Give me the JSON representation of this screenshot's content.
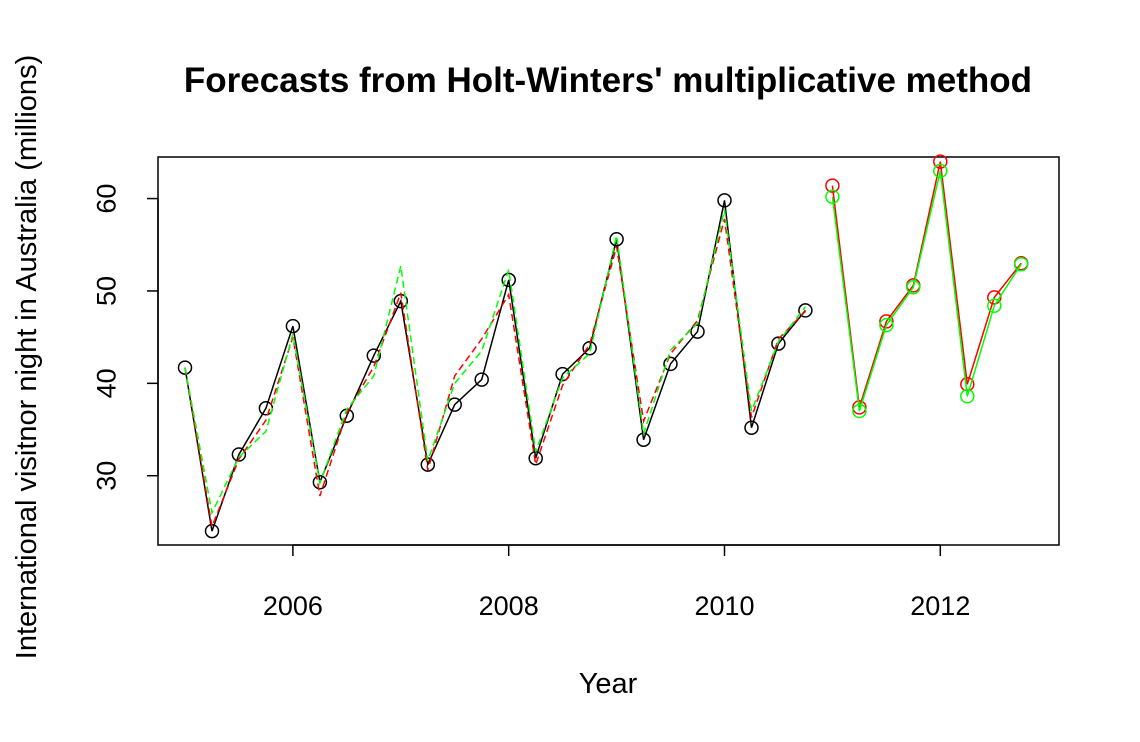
{
  "chart_data": {
    "type": "line",
    "title": "Forecasts from Holt-Winters' multiplicative method",
    "xlabel": "Year",
    "ylabel": "International visitnor night in Australia (millions)",
    "xlim": [
      2004.75,
      2013.1
    ],
    "ylim": [
      22.5,
      64.5
    ],
    "x_ticks": [
      2006,
      2008,
      2010,
      2012
    ],
    "y_ticks": [
      30,
      40,
      50,
      60
    ],
    "grid": false,
    "legend": "none",
    "series": [
      {
        "color": "#000000",
        "line": "solid",
        "markers": "circle",
        "x": [
          2005.0,
          2005.25,
          2005.5,
          2005.75,
          2006.0,
          2006.25,
          2006.5,
          2006.75,
          2007.0,
          2007.25,
          2007.5,
          2007.75,
          2008.0,
          2008.25,
          2008.5,
          2008.75,
          2009.0,
          2009.25,
          2009.5,
          2009.75,
          2010.0,
          2010.25,
          2010.5,
          2010.75
        ],
        "y": [
          41.7,
          24.0,
          32.3,
          37.3,
          46.2,
          29.3,
          36.5,
          43.0,
          48.9,
          31.2,
          37.7,
          40.4,
          51.2,
          31.9,
          41.0,
          43.8,
          55.6,
          33.9,
          42.1,
          45.6,
          59.8,
          35.2,
          44.3,
          47.9
        ]
      },
      {
        "color": "#ff0000",
        "line": "dashed",
        "markers": "none",
        "x": [
          2005.0,
          2005.25,
          2005.5,
          2005.75,
          2006.0,
          2006.25,
          2006.5,
          2006.75,
          2007.0,
          2007.25,
          2007.5,
          2007.75,
          2008.0,
          2008.25,
          2008.5,
          2008.75,
          2009.0,
          2009.25,
          2009.5,
          2009.75,
          2010.0,
          2010.25,
          2010.5,
          2010.75
        ],
        "y": [
          41.7,
          24.5,
          31.8,
          36.0,
          45.0,
          27.8,
          36.8,
          41.8,
          49.8,
          30.6,
          40.8,
          44.8,
          49.6,
          31.2,
          39.8,
          44.2,
          54.8,
          35.9,
          43.2,
          46.8,
          57.8,
          36.3,
          44.8,
          47.8
        ]
      },
      {
        "color": "#00ff00",
        "line": "dashed",
        "markers": "none",
        "x": [
          2005.0,
          2005.25,
          2005.5,
          2005.75,
          2006.0,
          2006.25,
          2006.5,
          2006.75,
          2007.0,
          2007.25,
          2007.5,
          2007.75,
          2008.0,
          2008.25,
          2008.5,
          2008.75,
          2009.0,
          2009.25,
          2009.5,
          2009.75,
          2010.0,
          2010.25,
          2010.5,
          2010.75
        ],
        "y": [
          41.7,
          26.0,
          32.0,
          34.8,
          45.3,
          29.2,
          37.2,
          40.8,
          52.7,
          31.6,
          40.0,
          43.5,
          52.3,
          32.6,
          40.6,
          43.2,
          56.0,
          34.5,
          43.6,
          46.5,
          58.8,
          37.0,
          44.5,
          48.3
        ]
      },
      {
        "color": "#ff0000",
        "line": "solid",
        "markers": "circle",
        "x": [
          2011.0,
          2011.25,
          2011.5,
          2011.75,
          2012.0,
          2012.25,
          2012.5,
          2012.75
        ],
        "y": [
          61.4,
          37.4,
          46.7,
          50.6,
          64.0,
          39.9,
          49.3,
          53.0
        ]
      },
      {
        "color": "#00ff00",
        "line": "solid",
        "markers": "circle",
        "x": [
          2011.0,
          2011.25,
          2011.5,
          2011.75,
          2012.0,
          2012.25,
          2012.5,
          2012.75
        ],
        "y": [
          60.2,
          37.0,
          46.3,
          50.4,
          63.0,
          38.6,
          48.4,
          52.9
        ]
      }
    ]
  }
}
